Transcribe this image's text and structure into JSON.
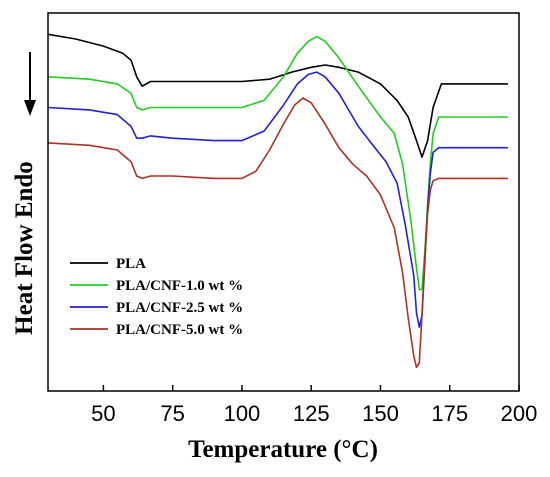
{
  "chart_data": {
    "type": "line",
    "xlabel": "Temperature (°C)",
    "ylabel": "Heat Flow Endo",
    "xlim": [
      30,
      200
    ],
    "x_ticks": [
      50,
      75,
      100,
      125,
      150,
      175,
      200
    ],
    "y_ticks_shown": false,
    "legend_position": "bottom-left",
    "series": [
      {
        "name": "PLA",
        "color": "#000000",
        "points": [
          [
            30,
            11.1
          ],
          [
            40,
            10.9
          ],
          [
            50,
            10.6
          ],
          [
            57,
            10.3
          ],
          [
            60,
            10.0
          ],
          [
            62,
            9.3
          ],
          [
            64,
            8.9
          ],
          [
            67,
            9.1
          ],
          [
            75,
            9.1
          ],
          [
            90,
            9.1
          ],
          [
            100,
            9.1
          ],
          [
            110,
            9.2
          ],
          [
            118,
            9.5
          ],
          [
            125,
            9.7
          ],
          [
            130,
            9.8
          ],
          [
            135,
            9.7
          ],
          [
            142,
            9.5
          ],
          [
            150,
            9.0
          ],
          [
            156,
            8.3
          ],
          [
            160,
            7.6
          ],
          [
            163,
            6.6
          ],
          [
            165,
            5.9
          ],
          [
            167,
            6.6
          ],
          [
            169,
            8.0
          ],
          [
            172,
            9.0
          ],
          [
            180,
            9.0
          ],
          [
            196,
            9.0
          ]
        ]
      },
      {
        "name": "PLA/CNF-1.0 wt %",
        "color": "#22cc22",
        "points": [
          [
            30,
            9.3
          ],
          [
            45,
            9.2
          ],
          [
            55,
            9.0
          ],
          [
            60,
            8.6
          ],
          [
            62,
            8.0
          ],
          [
            64,
            7.9
          ],
          [
            67,
            8.0
          ],
          [
            75,
            8.0
          ],
          [
            90,
            8.0
          ],
          [
            100,
            8.0
          ],
          [
            108,
            8.3
          ],
          [
            115,
            9.3
          ],
          [
            120,
            10.3
          ],
          [
            124,
            10.8
          ],
          [
            127,
            11.0
          ],
          [
            130,
            10.8
          ],
          [
            135,
            10.1
          ],
          [
            142,
            8.9
          ],
          [
            150,
            7.6
          ],
          [
            155,
            6.9
          ],
          [
            158,
            5.6
          ],
          [
            161,
            3.2
          ],
          [
            163,
            1.2
          ],
          [
            164,
            0.3
          ],
          [
            165,
            0.3
          ],
          [
            166,
            1.9
          ],
          [
            167,
            3.9
          ],
          [
            168,
            5.6
          ],
          [
            169,
            6.9
          ],
          [
            171,
            7.6
          ],
          [
            175,
            7.6
          ],
          [
            196,
            7.6
          ]
        ]
      },
      {
        "name": "PLA/CNF-2.5 wt %",
        "color": "#2222cc",
        "points": [
          [
            30,
            8.0
          ],
          [
            45,
            7.9
          ],
          [
            55,
            7.7
          ],
          [
            60,
            7.2
          ],
          [
            62,
            6.7
          ],
          [
            64,
            6.7
          ],
          [
            67,
            6.8
          ],
          [
            75,
            6.7
          ],
          [
            90,
            6.6
          ],
          [
            100,
            6.6
          ],
          [
            108,
            7.0
          ],
          [
            115,
            8.1
          ],
          [
            120,
            9.0
          ],
          [
            124,
            9.4
          ],
          [
            127,
            9.5
          ],
          [
            130,
            9.3
          ],
          [
            135,
            8.6
          ],
          [
            142,
            7.2
          ],
          [
            148,
            6.3
          ],
          [
            152,
            5.7
          ],
          [
            156,
            4.8
          ],
          [
            159,
            3.0
          ],
          [
            162,
            0.9
          ],
          [
            163,
            -0.7
          ],
          [
            164,
            -1.3
          ],
          [
            165,
            -0.8
          ],
          [
            166,
            1.4
          ],
          [
            167,
            3.7
          ],
          [
            168,
            5.2
          ],
          [
            169,
            6.1
          ],
          [
            171,
            6.3
          ],
          [
            175,
            6.3
          ],
          [
            196,
            6.3
          ]
        ]
      },
      {
        "name": "PLA/CNF-5.0 wt %",
        "color": "#aa3322",
        "points": [
          [
            30,
            6.5
          ],
          [
            45,
            6.4
          ],
          [
            55,
            6.2
          ],
          [
            60,
            5.7
          ],
          [
            62,
            5.1
          ],
          [
            64,
            5.0
          ],
          [
            67,
            5.1
          ],
          [
            75,
            5.1
          ],
          [
            90,
            5.0
          ],
          [
            100,
            5.0
          ],
          [
            105,
            5.3
          ],
          [
            110,
            6.2
          ],
          [
            115,
            7.3
          ],
          [
            119,
            8.1
          ],
          [
            122,
            8.4
          ],
          [
            125,
            8.2
          ],
          [
            130,
            7.3
          ],
          [
            135,
            6.3
          ],
          [
            140,
            5.6
          ],
          [
            145,
            5.1
          ],
          [
            150,
            4.3
          ],
          [
            155,
            2.9
          ],
          [
            158,
            1.0
          ],
          [
            160,
            -0.9
          ],
          [
            162,
            -2.5
          ],
          [
            163,
            -3.0
          ],
          [
            164,
            -2.8
          ],
          [
            165,
            -0.8
          ],
          [
            166,
            1.6
          ],
          [
            167,
            3.5
          ],
          [
            168,
            4.5
          ],
          [
            169,
            4.9
          ],
          [
            171,
            5.0
          ],
          [
            175,
            5.0
          ],
          [
            196,
            5.0
          ]
        ]
      }
    ]
  }
}
